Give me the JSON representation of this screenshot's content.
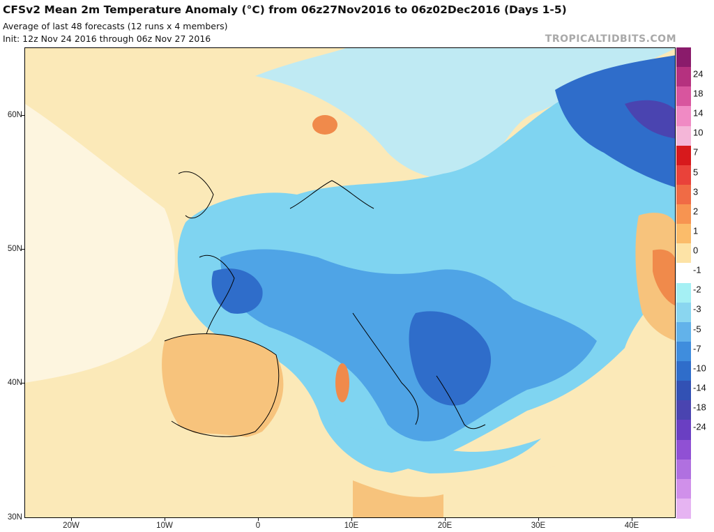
{
  "header": {
    "title": "CFSv2 Mean 2m Temperature Anomaly (°C) from 06z27Nov2016 to 06z02Dec2016 (Days 1-5)",
    "subtitle1": "Average of last 48 forecasts (12 runs x 4 members)",
    "subtitle2": "Init: 12z Nov 24 2016 through 06z Nov 27 2016",
    "brand": "TROPICALTIDBITS.COM"
  },
  "axes": {
    "lat_labels": [
      "60N",
      "50N",
      "40N",
      "30N"
    ],
    "lat_values": [
      60,
      50,
      40,
      30
    ],
    "lon_labels": [
      "20W",
      "10W",
      "0",
      "10E",
      "20E",
      "30E",
      "40E"
    ],
    "lon_values": [
      -20,
      -10,
      0,
      10,
      20,
      30,
      40
    ],
    "lon_range": [
      -25,
      44
    ],
    "lat_range": [
      30,
      65
    ]
  },
  "colorbar": {
    "labels": [
      "24",
      "18",
      "14",
      "10",
      "7",
      "5",
      "3",
      "2",
      "1",
      "0",
      "-1",
      "-2",
      "-3",
      "-5",
      "-7",
      "-10",
      "-14",
      "-18",
      "-24"
    ],
    "colors": [
      "#8a1b6b",
      "#b5317f",
      "#d8559e",
      "#f08ac4",
      "#f4b6d8",
      "#d7191c",
      "#e9423a",
      "#f06b45",
      "#f79451",
      "#fbbc6a",
      "#fde3a6",
      "#ffffff",
      "#a5f0f4",
      "#8ad6f0",
      "#62b2ea",
      "#3f8ddd",
      "#2f6dca",
      "#3251b4",
      "#4a44b0",
      "#6a3fc2",
      "#9050d4",
      "#b070e0",
      "#d090ea",
      "#e6b4f2"
    ]
  },
  "map_colors": {
    "background": "#fbe9b8",
    "sea_cool": "#bfeaf3",
    "cold1": "#7fd4f1",
    "cold2": "#4fa4e6",
    "cold3": "#2f6dca",
    "cold4": "#2a52b0",
    "warm1": "#f7c37c",
    "warm2": "#f08a4b",
    "warm3": "#df4a2a"
  }
}
